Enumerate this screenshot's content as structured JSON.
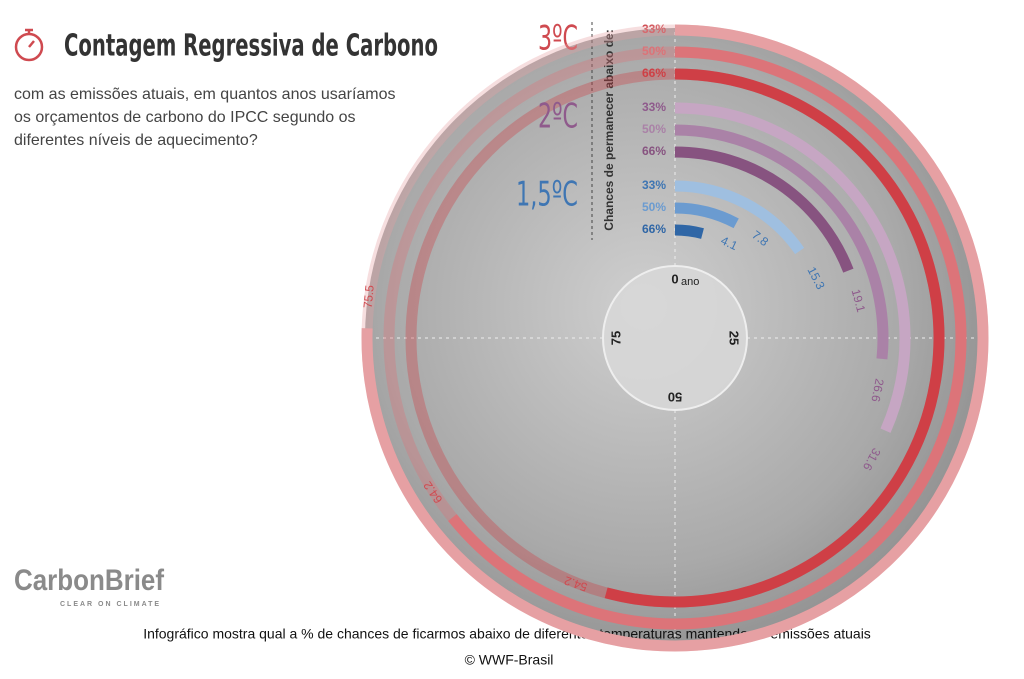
{
  "chart_data": {
    "type": "radial_bar",
    "title": "Contagem Regressiva de Carbono",
    "subtitle": [
      "com as emissões atuais, em quantos anos usaríamos",
      "os orçamentos de carbono do IPCC segundo os",
      "diferentes níveis de aquecimento?"
    ],
    "legend_label": "Chances de permanecer abaixo de:",
    "axis_unit": "ano",
    "rlim": [
      0,
      100
    ],
    "ticks": [
      0,
      25,
      50,
      75
    ],
    "groups": [
      {
        "name": "3ºC",
        "color": "#cf4a50",
        "series": [
          {
            "name": "33%",
            "value": 75.5,
            "color": "#e6a0a3"
          },
          {
            "name": "50%",
            "value": 64.2,
            "color": "#dc7479"
          },
          {
            "name": "66%",
            "value": 54.2,
            "color": "#cf3f46"
          }
        ]
      },
      {
        "name": "2ºC",
        "color": "#8f5a8c",
        "series": [
          {
            "name": "33%",
            "value": 31.6,
            "color": "#c6a6c3"
          },
          {
            "name": "50%",
            "value": 26.6,
            "color": "#aa82a7"
          },
          {
            "name": "66%",
            "value": 19.1,
            "color": "#875380"
          }
        ]
      },
      {
        "name": "1,5ºC",
        "color": "#3f76b3",
        "series": [
          {
            "name": "33%",
            "value": 15.3,
            "color": "#9fbfe0"
          },
          {
            "name": "50%",
            "value": 7.8,
            "color": "#6b9bd0"
          },
          {
            "name": "66%",
            "value": 4.1,
            "color": "#2f66a6"
          }
        ]
      }
    ]
  },
  "brand": {
    "name": "CarbonBrief",
    "tagline": "CLEAR ON CLIMATE"
  },
  "caption": "Infográfico mostra qual a % de chances de ficarmos abaixo de diferentes temperaturas mantendo as emissões atuais",
  "credit": "© WWF-Brasil"
}
